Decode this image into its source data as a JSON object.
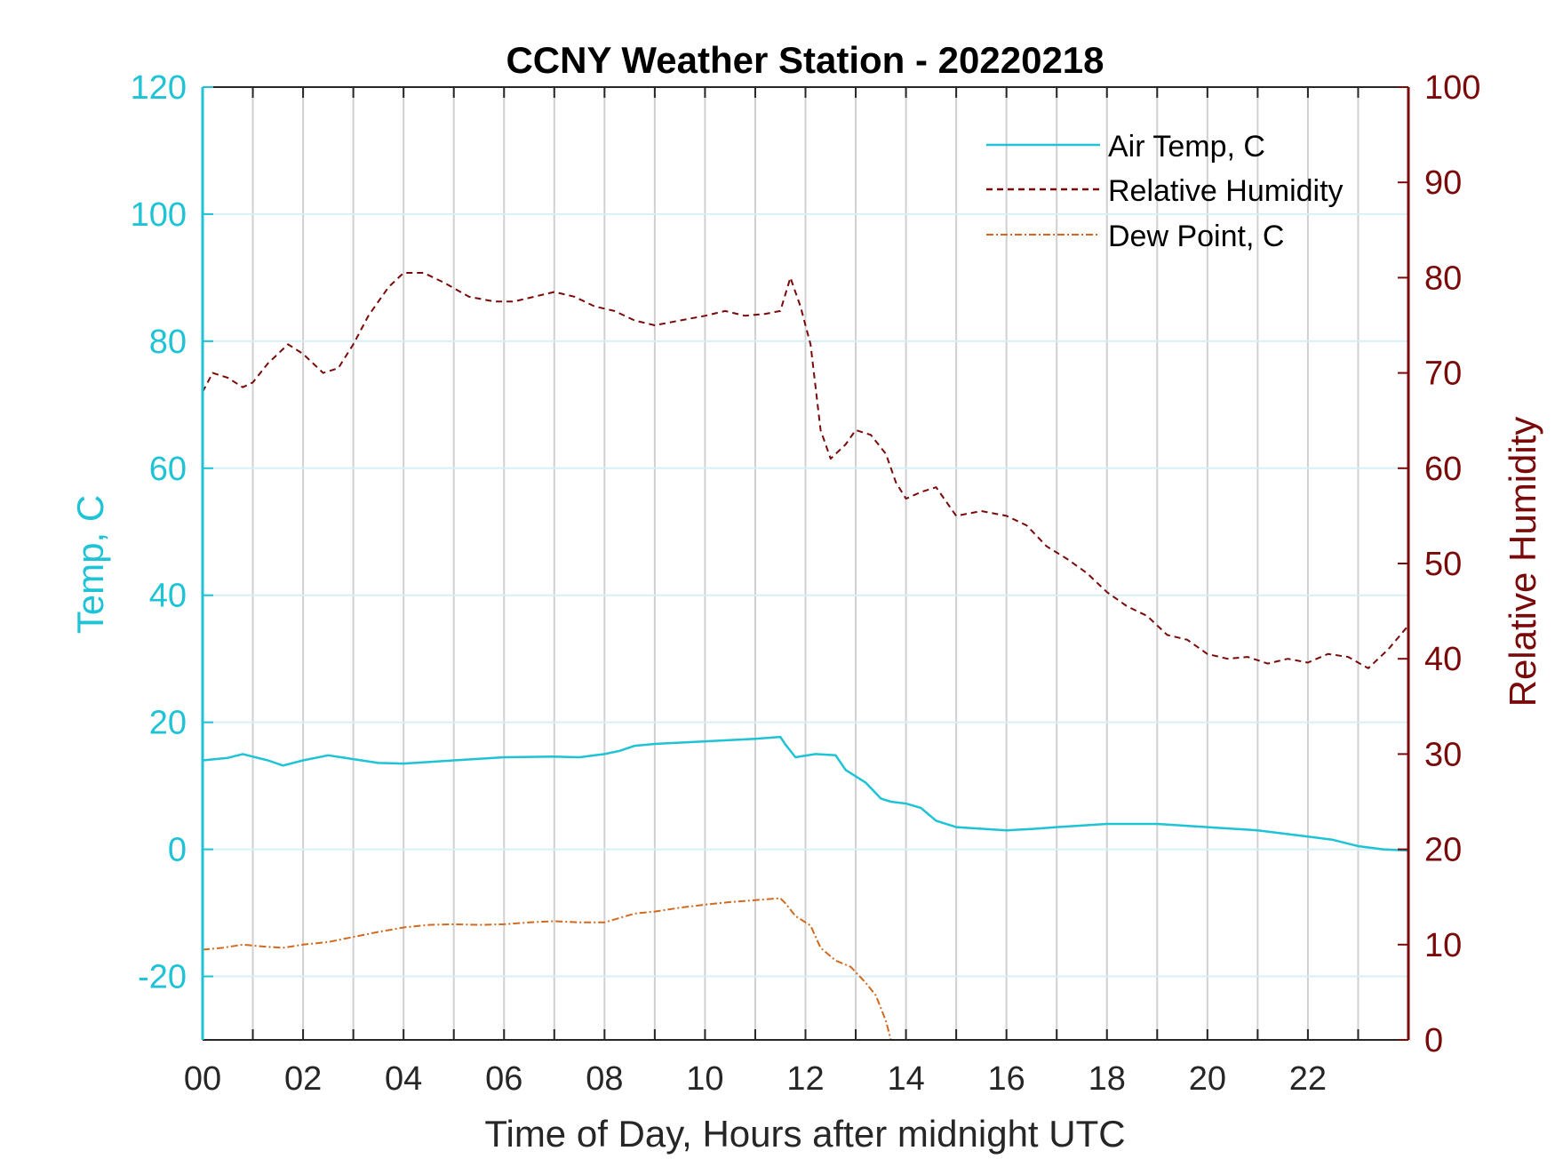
{
  "chart_data": {
    "type": "line",
    "title": "CCNY Weather Station - 20220218",
    "xlabel": "Time of Day, Hours after midnight UTC",
    "ylabel_left": "Temp, C",
    "ylabel_right": "Relative Humidity",
    "xlim": [
      0,
      24
    ],
    "ylim_left": [
      -30,
      120
    ],
    "ylim_right": [
      0,
      100
    ],
    "x_ticks": [
      0,
      2,
      4,
      6,
      8,
      10,
      12,
      14,
      16,
      18,
      20,
      22
    ],
    "x_tick_labels": [
      "00",
      "02",
      "04",
      "06",
      "08",
      "10",
      "12",
      "14",
      "16",
      "18",
      "20",
      "22"
    ],
    "y_left_ticks": [
      -20,
      0,
      20,
      40,
      60,
      80,
      100,
      120
    ],
    "y_right_ticks": [
      0,
      10,
      20,
      30,
      40,
      50,
      60,
      70,
      80,
      90,
      100
    ],
    "grid": "on",
    "legend_position": "top-right",
    "colors": {
      "air_temp": "#1ec3d6",
      "humidity": "#7a0a0a",
      "dew_point": "#d2691e",
      "left_axis": "#1ec3d6",
      "right_axis": "#7a0a0a"
    },
    "series": [
      {
        "name": "Air Temp, C",
        "axis": "left",
        "style": "solid",
        "x": [
          0,
          0.5,
          0.8,
          1.0,
          1.3,
          1.6,
          2.0,
          2.5,
          3.0,
          3.5,
          4.0,
          5.0,
          6.0,
          7.0,
          7.5,
          8.0,
          8.3,
          8.6,
          9.0,
          10.0,
          11.0,
          11.5,
          11.6,
          11.8,
          12.2,
          12.6,
          12.8,
          13.2,
          13.5,
          13.7,
          14.0,
          14.3,
          14.6,
          15.0,
          16.0,
          16.5,
          17.0,
          18.0,
          19.0,
          20.0,
          21.0,
          22.0,
          22.5,
          23.0,
          23.5,
          24.0
        ],
        "values": [
          14.0,
          14.4,
          15.0,
          14.6,
          14.0,
          13.2,
          14.0,
          14.8,
          14.2,
          13.6,
          13.5,
          14.0,
          14.5,
          14.6,
          14.5,
          15.0,
          15.5,
          16.3,
          16.6,
          17.0,
          17.4,
          17.7,
          16.5,
          14.5,
          15.0,
          14.8,
          12.5,
          10.5,
          8.0,
          7.5,
          7.2,
          6.5,
          4.5,
          3.5,
          3.0,
          3.2,
          3.5,
          4.0,
          4.0,
          3.5,
          3.0,
          2.0,
          1.5,
          0.5,
          0.0,
          -0.2
        ]
      },
      {
        "name": "Relative Humidity",
        "axis": "right",
        "style": "dashed",
        "x": [
          0,
          0.2,
          0.5,
          0.8,
          1.0,
          1.3,
          1.7,
          2.0,
          2.4,
          2.7,
          3.0,
          3.3,
          3.7,
          4.0,
          4.4,
          4.8,
          5.3,
          5.8,
          6.2,
          6.6,
          7.0,
          7.4,
          7.8,
          8.2,
          8.6,
          9.0,
          9.5,
          10.0,
          10.4,
          10.8,
          11.2,
          11.5,
          11.7,
          11.9,
          12.1,
          12.3,
          12.5,
          12.8,
          13.0,
          13.3,
          13.6,
          13.8,
          14.0,
          14.3,
          14.6,
          15.0,
          15.5,
          16.0,
          16.4,
          16.8,
          17.2,
          17.6,
          18.0,
          18.4,
          18.8,
          19.2,
          19.6,
          20.0,
          20.4,
          20.8,
          21.2,
          21.6,
          22.0,
          22.4,
          22.8,
          23.2,
          23.6,
          24.0
        ],
        "values": [
          68,
          70,
          69.5,
          68.5,
          69,
          71,
          73,
          72,
          70,
          70.5,
          73,
          76,
          79,
          80.5,
          80.5,
          79.5,
          78,
          77.5,
          77.5,
          78,
          78.5,
          78,
          77,
          76.5,
          75.5,
          75,
          75.5,
          76,
          76.5,
          76,
          76.2,
          76.5,
          80,
          77,
          73,
          64,
          61,
          62.5,
          64,
          63.5,
          61.5,
          58.5,
          56.8,
          57.5,
          58.0,
          55.0,
          55.5,
          55.0,
          54.0,
          51.8,
          50.5,
          49.0,
          47.0,
          45.5,
          44.5,
          42.5,
          42.0,
          40.5,
          40.0,
          40.2,
          39.5,
          40.0,
          39.6,
          40.5,
          40.2,
          39.0,
          41.0,
          43.5
        ]
      },
      {
        "name": "Dew Point, C",
        "axis": "left",
        "style": "dash-dot",
        "x": [
          0,
          0.4,
          0.8,
          1.2,
          1.6,
          2.0,
          2.5,
          3.0,
          3.5,
          4.0,
          4.5,
          5.0,
          5.5,
          6.0,
          6.5,
          7.0,
          7.5,
          8.0,
          8.3,
          8.6,
          9.0,
          9.5,
          10.0,
          10.5,
          11.0,
          11.5,
          11.6,
          11.8,
          12.1,
          12.3,
          12.6,
          12.9,
          13.2,
          13.4,
          13.6,
          13.7
        ],
        "values": [
          -15.8,
          -15.5,
          -15.0,
          -15.3,
          -15.5,
          -15.0,
          -14.6,
          -13.8,
          -13.0,
          -12.3,
          -11.9,
          -11.8,
          -11.9,
          -11.8,
          -11.5,
          -11.3,
          -11.5,
          -11.5,
          -10.8,
          -10.1,
          -9.8,
          -9.2,
          -8.7,
          -8.3,
          -8.0,
          -7.7,
          -8.5,
          -10.5,
          -12.0,
          -15.5,
          -17.5,
          -18.5,
          -21.0,
          -23.0,
          -27.0,
          -30.0
        ]
      }
    ]
  }
}
